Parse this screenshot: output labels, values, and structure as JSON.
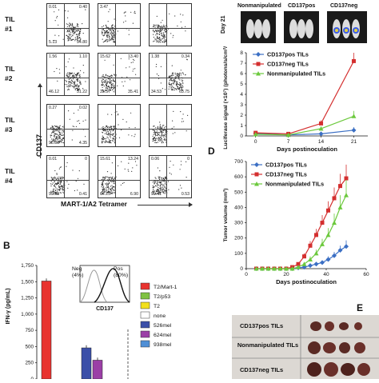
{
  "panelA": {
    "rows": [
      {
        "til": "TIL\n#1",
        "plots": [
          {
            "tl": "0.01",
            "tr": "0.40",
            "bl": "5.13",
            "br": "94.80"
          },
          {
            "tl": "3.47",
            "tr": "",
            "bl": "",
            "br": ""
          },
          {
            "tl": "",
            "tr": "",
            "bl": "",
            "br": ""
          }
        ]
      },
      {
        "til": "TIL\n#2",
        "plots": [
          {
            "tl": "1.56",
            "tr": "1.10",
            "bl": "46.12",
            "br": "51.22"
          },
          {
            "tl": "15.62",
            "tr": "13.40",
            "bl": "35.57",
            "br": "35.41"
          },
          {
            "tl": "1.38",
            "tr": "0.34",
            "bl": "34.53",
            "br": "63.75"
          }
        ]
      },
      {
        "til": "TIL\n#3",
        "plots": [
          {
            "tl": "0.27",
            "tr": "0.02",
            "bl": "95.36",
            "br": "4.35"
          },
          {
            "tl": "",
            "tr": "",
            "bl": "",
            "br": ""
          },
          {
            "tl": "",
            "tr": "",
            "bl": "",
            "br": ""
          }
        ]
      },
      {
        "til": "TIL\n#4",
        "plots": [
          {
            "tl": "0.01",
            "tr": "0",
            "bl": "99.58",
            "br": "0.41"
          },
          {
            "tl": "15.61",
            "tr": "13.24",
            "bl": "64.25",
            "br": "6.90"
          },
          {
            "tl": "0.06",
            "tr": "0",
            "bl": "99.41",
            "br": "0.53"
          }
        ]
      }
    ],
    "yaxis": "CD137",
    "xaxis": "MART-1/A2 Tetramer"
  },
  "panelC": {
    "images": [
      "Nonmanipulated",
      "CD137pos",
      "CD137neg"
    ],
    "day_label": "Day 21",
    "legend": [
      "CD137pos TILs",
      "CD137neg TILs",
      "Nonmanipulated TILs"
    ],
    "ylabel": "Luciferase signal (×10⁷) (photons/s/cm²/sr)",
    "xlabel": "Days postinoculation"
  },
  "panelD": {
    "letter": "D",
    "legend": [
      "CD137pos TILs",
      "CD137neg TILs",
      "Nonmanipulated TILs"
    ],
    "ylabel": "Tumor volume (mm³)",
    "xlabel": "Days postinoculation"
  },
  "panelB": {
    "letter": "B",
    "ylabel": "IFN-γ (pg/mL)",
    "histo_neg": "Neg\n(4%)",
    "histo_pos": "Pos\n(80%)",
    "histo_xlabel": "CD137",
    "legend": [
      {
        "label": "T2/Mart-1",
        "color": "#e8332f"
      },
      {
        "label": "T2/p53",
        "color": "#7ec242"
      },
      {
        "label": "T2",
        "color": "#f2e01c"
      },
      {
        "label": "none",
        "color": "#ffffff"
      },
      {
        "label": "526mel",
        "color": "#3b4fa8"
      },
      {
        "label": "624mel",
        "color": "#9b3fa6"
      },
      {
        "label": "938mel",
        "color": "#4f8fd6"
      }
    ]
  },
  "panelE": {
    "letter": "E",
    "rows": [
      "CD137pos TILs",
      "Nonmanipulated TILs",
      "CD137neg TILs"
    ]
  },
  "chart_data": [
    {
      "type": "line",
      "panel": "C",
      "x": [
        0,
        7,
        14,
        21
      ],
      "xlim": [
        -2,
        24
      ],
      "ylim": [
        0,
        8
      ],
      "yticks": [
        0,
        1,
        2,
        3,
        4,
        5,
        6,
        7,
        8
      ],
      "xticks": [
        0,
        7,
        14,
        21
      ],
      "series": [
        {
          "name": "CD137pos TILs",
          "color": "#3b6fc4",
          "marker": "diamond",
          "values": [
            0.25,
            0.1,
            0.2,
            0.55
          ],
          "err": [
            0.1,
            0.05,
            0.1,
            0.3
          ]
        },
        {
          "name": "CD137neg TILs",
          "color": "#d42f2f",
          "marker": "square",
          "values": [
            0.3,
            0.2,
            1.2,
            7.2
          ],
          "err": [
            0.1,
            0.1,
            0.3,
            0.8
          ]
        },
        {
          "name": "Nonmanipulated TILs",
          "color": "#6cc93d",
          "marker": "triangle",
          "values": [
            0.15,
            0.1,
            0.7,
            1.9
          ],
          "err": [
            0.05,
            0.05,
            0.2,
            0.5
          ]
        }
      ]
    },
    {
      "type": "line",
      "panel": "D",
      "x": [
        5,
        8,
        11,
        14,
        17,
        20,
        23,
        26,
        29,
        32,
        35,
        38,
        41,
        44,
        47,
        50
      ],
      "xlim": [
        0,
        60
      ],
      "ylim": [
        0,
        700
      ],
      "yticks": [
        0,
        100,
        200,
        300,
        400,
        500,
        600,
        700
      ],
      "xticks": [
        0,
        20,
        40,
        60
      ],
      "series": [
        {
          "name": "CD137pos TILs",
          "color": "#3b6fc4",
          "marker": "diamond",
          "values": [
            0,
            0,
            0,
            0,
            0,
            0,
            0,
            5,
            10,
            20,
            30,
            40,
            60,
            85,
            120,
            145
          ],
          "err": [
            0,
            0,
            0,
            0,
            0,
            0,
            0,
            3,
            5,
            8,
            10,
            15,
            20,
            25,
            30,
            40
          ]
        },
        {
          "name": "CD137neg TILs",
          "color": "#d42f2f",
          "marker": "square",
          "values": [
            0,
            0,
            0,
            0,
            0,
            0,
            10,
            30,
            80,
            150,
            220,
            300,
            380,
            460,
            540,
            590
          ],
          "err": [
            0,
            0,
            0,
            0,
            0,
            0,
            5,
            10,
            20,
            30,
            40,
            50,
            60,
            70,
            80,
            90
          ]
        },
        {
          "name": "Nonmanipulated TILs",
          "color": "#6cc93d",
          "marker": "triangle",
          "values": [
            0,
            0,
            0,
            0,
            0,
            0,
            0,
            10,
            30,
            60,
            100,
            160,
            220,
            300,
            400,
            480
          ],
          "err": [
            0,
            0,
            0,
            0,
            0,
            0,
            0,
            5,
            10,
            20,
            25,
            35,
            45,
            60,
            80,
            100
          ]
        }
      ]
    },
    {
      "type": "bar",
      "panel": "B",
      "ylim": [
        0,
        1750
      ],
      "yticks": [
        0,
        250,
        500,
        750,
        1000,
        1250,
        1500,
        1750
      ],
      "yticklabels": [
        "0",
        "250",
        "500",
        "750",
        "1,000",
        "1,250",
        "1,500",
        "1,750"
      ],
      "categories": [
        "T2/Mart-1",
        "T2/p53",
        "T2",
        "none",
        "526mel",
        "624mel",
        "938mel"
      ],
      "values": [
        1510,
        0,
        0,
        0,
        480,
        290,
        0
      ]
    }
  ]
}
